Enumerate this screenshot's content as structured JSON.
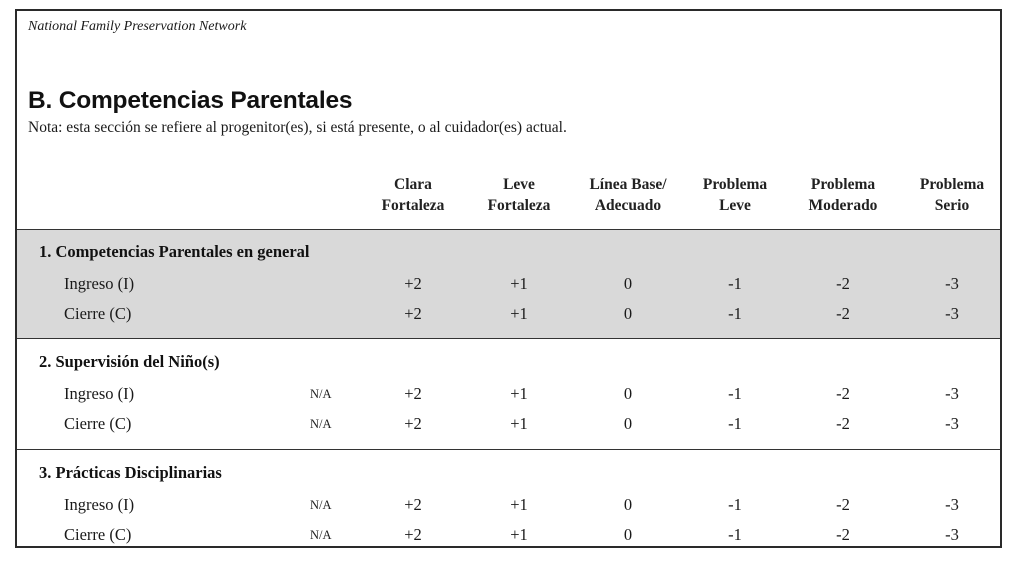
{
  "header": {
    "org": "National Family Preservation Network",
    "title": "B. Competencias Parentales",
    "note": "Nota: esta sección se refiere al progenitor(es), si está presente, o al cuidador(es) actual."
  },
  "columns": [
    {
      "line1": "Clara",
      "line2": "Fortaleza"
    },
    {
      "line1": "Leve",
      "line2": "Fortaleza"
    },
    {
      "line1": "Línea Base/",
      "line2": "Adecuado"
    },
    {
      "line1": "Problema",
      "line2": "Leve"
    },
    {
      "line1": "Problema",
      "line2": "Moderado"
    },
    {
      "line1": "Problema",
      "line2": "Serio"
    }
  ],
  "sections": [
    {
      "title": "1.  Competencias Parentales en general",
      "shaded": true,
      "rows": [
        {
          "label": "Ingreso (I)",
          "na": "",
          "values": [
            "+2",
            "+1",
            "0",
            "-1",
            "-2",
            "-3"
          ]
        },
        {
          "label": "Cierre (C)",
          "na": "",
          "values": [
            "+2",
            "+1",
            "0",
            "-1",
            "-2",
            "-3"
          ]
        }
      ]
    },
    {
      "title": "2.  Supervisión del Niño(s)",
      "shaded": false,
      "rows": [
        {
          "label": "Ingreso (I)",
          "na": "N/A",
          "values": [
            "+2",
            "+1",
            "0",
            "-1",
            "-2",
            "-3"
          ]
        },
        {
          "label": "Cierre (C)",
          "na": "N/A",
          "values": [
            "+2",
            "+1",
            "0",
            "-1",
            "-2",
            "-3"
          ]
        }
      ]
    },
    {
      "title": "3.  Prácticas Disciplinarias",
      "shaded": false,
      "rows": [
        {
          "label": "Ingreso (I)",
          "na": "N/A",
          "values": [
            "+2",
            "+1",
            "0",
            "-1",
            "-2",
            "-3"
          ]
        },
        {
          "label": "Cierre (C)",
          "na": "N/A",
          "values": [
            "+2",
            "+1",
            "0",
            "-1",
            "-2",
            "-3"
          ]
        }
      ]
    }
  ]
}
